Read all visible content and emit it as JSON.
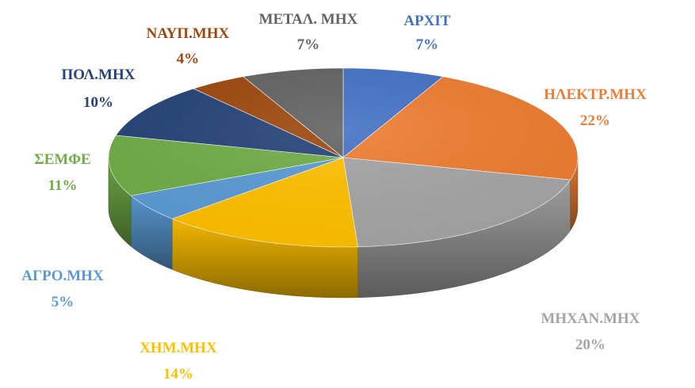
{
  "chart_data": {
    "type": "pie",
    "style": "3d",
    "categories": [
      "ΑΡΧΙΤ",
      "ΗΛΕΚΤΡ.ΜΗΧ",
      "ΜΗΧΑΝ.ΜΗΧ",
      "ΧΗΜ.ΜΗΧ",
      "ΑΓΡΟ.ΜΗΧ",
      "ΣΕΜΦΕ",
      "ΠΟΛ.ΜΗΧ",
      "ΝΑΥΠ.ΜΗΧ",
      "ΜΕΤΑΛ. ΜΗΧ"
    ],
    "values": [
      7,
      22,
      20,
      14,
      5,
      11,
      10,
      4,
      7
    ],
    "value_labels": [
      "7%",
      "22%",
      "20%",
      "14%",
      "5%",
      "11%",
      "10%",
      "4%",
      "7%"
    ],
    "colors": [
      "#4472C4",
      "#ED7D31",
      "#A5A5A5",
      "#FFC000",
      "#5B9BD5",
      "#70AD47",
      "#264478",
      "#9E480E",
      "#636363"
    ],
    "label_colors": [
      "#4472C4",
      "#ED7D31",
      "#A5A5A5",
      "#FFC000",
      "#5B9BD5",
      "#70AD47",
      "#264478",
      "#9E480E",
      "#636363"
    ],
    "legend": "none",
    "data_labels": "outside"
  }
}
